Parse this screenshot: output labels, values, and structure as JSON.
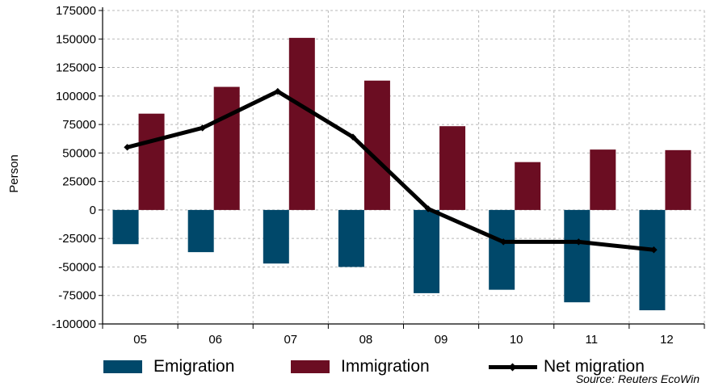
{
  "chart_data": {
    "type": "bar",
    "categories": [
      "05",
      "06",
      "07",
      "08",
      "09",
      "10",
      "11",
      "12"
    ],
    "series": [
      {
        "name": "Emigration",
        "type": "bar",
        "color": "#00486a",
        "values": [
          -30000,
          -37000,
          -47000,
          -50000,
          -73000,
          -70000,
          -81000,
          -88000
        ]
      },
      {
        "name": "Immigration",
        "type": "bar",
        "color": "#6b0d22",
        "values": [
          84500,
          108000,
          151000,
          113500,
          73500,
          42000,
          53000,
          52500
        ]
      },
      {
        "name": "Net migration",
        "type": "line",
        "color": "#000000",
        "values": [
          55000,
          72000,
          104000,
          64000,
          1000,
          -28000,
          -28000,
          -35000
        ]
      }
    ],
    "ylabel": "Person",
    "xlabel": "",
    "ylim": [
      -100000,
      175000
    ],
    "yticks": [
      175000,
      150000,
      125000,
      100000,
      75000,
      50000,
      25000,
      0,
      -25000,
      -50000,
      -75000,
      -100000
    ],
    "ytick_labels": [
      "175000",
      "150000",
      "125000",
      "100000",
      "75000",
      "50000",
      "25000",
      "0",
      "-25000",
      "-50000",
      "-75000",
      "-100000"
    ],
    "grid": true,
    "legend_position": "bottom"
  },
  "legend": {
    "emigration": "Emigration",
    "immigration": "Immigration",
    "net": "Net migration"
  },
  "source": "Source: Reuters EcoWin"
}
